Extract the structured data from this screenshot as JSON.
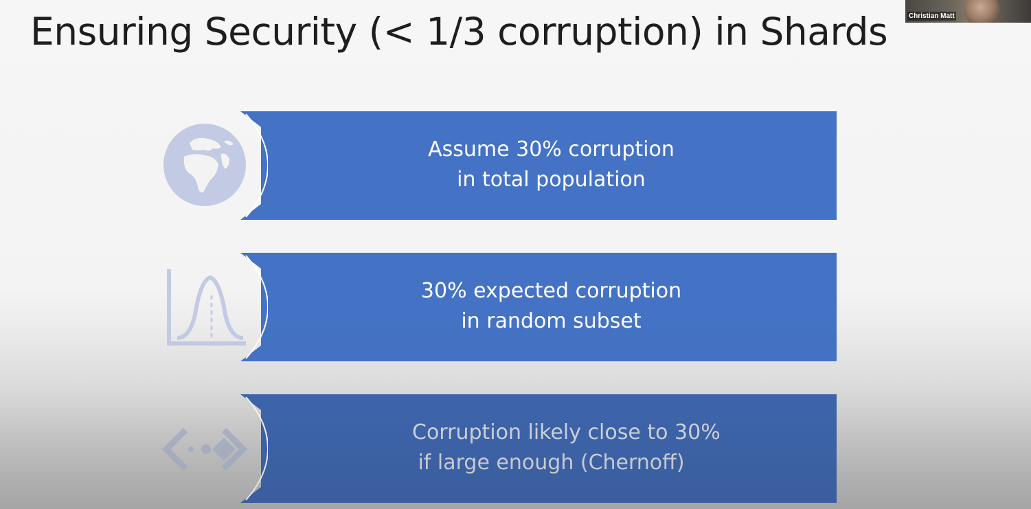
{
  "slide": {
    "title": "Ensuring Security (< 1/3 corruption) in Shards"
  },
  "participant": {
    "name": "Christian Matt"
  },
  "steps": [
    {
      "icon": "globe-icon",
      "lines": [
        "Assume 30% corruption",
        "in total population"
      ]
    },
    {
      "icon": "bell-curve-icon",
      "lines": [
        "30% expected corruption",
        "in random subset"
      ]
    },
    {
      "icon": "code-brackets-icon",
      "lines": [
        "Corruption likely close to 30%",
        "if large enough (Chernoff)"
      ]
    }
  ],
  "colors": {
    "banner": "#4472c4",
    "icon": "#c3cbe4",
    "title": "#1e1e1e",
    "background": "#f3f3f3"
  }
}
